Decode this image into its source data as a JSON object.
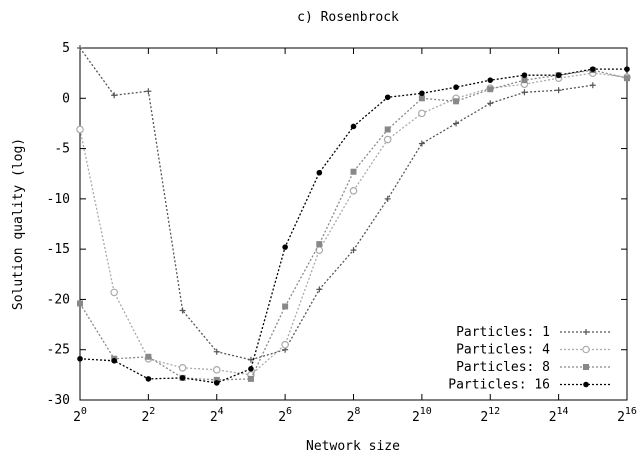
{
  "chart_data": {
    "type": "line",
    "title": "c) Rosenbrock",
    "xlabel": "Network size",
    "ylabel": "Solution quality (log)",
    "x_scale": "log2",
    "x_tick_base": "2",
    "x_ticks_exponents": [
      "0",
      "2",
      "4",
      "6",
      "8",
      "10",
      "12",
      "14",
      "16"
    ],
    "x_exponent_range": [
      0,
      16
    ],
    "ylim": [
      -30,
      5
    ],
    "y_ticks": [
      "5",
      "0",
      "-5",
      "-10",
      "-15",
      "-20",
      "-25",
      "-30"
    ],
    "grid": false,
    "legend_position": "bottom-right",
    "x": [
      1,
      2,
      4,
      8,
      16,
      32,
      64,
      128,
      256,
      512,
      1024,
      2048,
      4096,
      8192,
      16384,
      32768,
      65536
    ],
    "series": [
      {
        "name": "Particles: 1",
        "color": "#555555",
        "marker": "plus",
        "values": [
          5.0,
          0.3,
          0.7,
          -21.1,
          -25.2,
          -26.0,
          -25.0,
          -19.0,
          -15.1,
          -10.0,
          -4.5,
          -2.5,
          -0.5,
          0.6,
          0.8,
          1.3,
          null
        ]
      },
      {
        "name": "Particles: 4",
        "color": "#aaaaaa",
        "marker": "circle",
        "values": [
          -3.1,
          -19.3,
          -25.9,
          -26.8,
          -27.0,
          -27.5,
          -24.5,
          -15.1,
          -9.2,
          -4.1,
          -1.5,
          0.0,
          1.0,
          1.4,
          2.0,
          2.5,
          2.1
        ]
      },
      {
        "name": "Particles: 8",
        "color": "#888888",
        "marker": "square",
        "values": [
          -20.4,
          -25.9,
          -25.7,
          -27.8,
          -28.0,
          -27.9,
          -20.7,
          -14.5,
          -7.3,
          -3.1,
          0.0,
          -0.3,
          0.9,
          1.8,
          2.3,
          2.8,
          2.0
        ]
      },
      {
        "name": "Particles: 16",
        "color": "#000000",
        "marker": "dot",
        "values": [
          -25.9,
          -26.1,
          -27.9,
          -27.8,
          -28.3,
          -26.9,
          -14.8,
          -7.4,
          -2.8,
          0.1,
          0.5,
          1.1,
          1.8,
          2.3,
          2.3,
          2.9,
          2.9
        ]
      }
    ]
  }
}
